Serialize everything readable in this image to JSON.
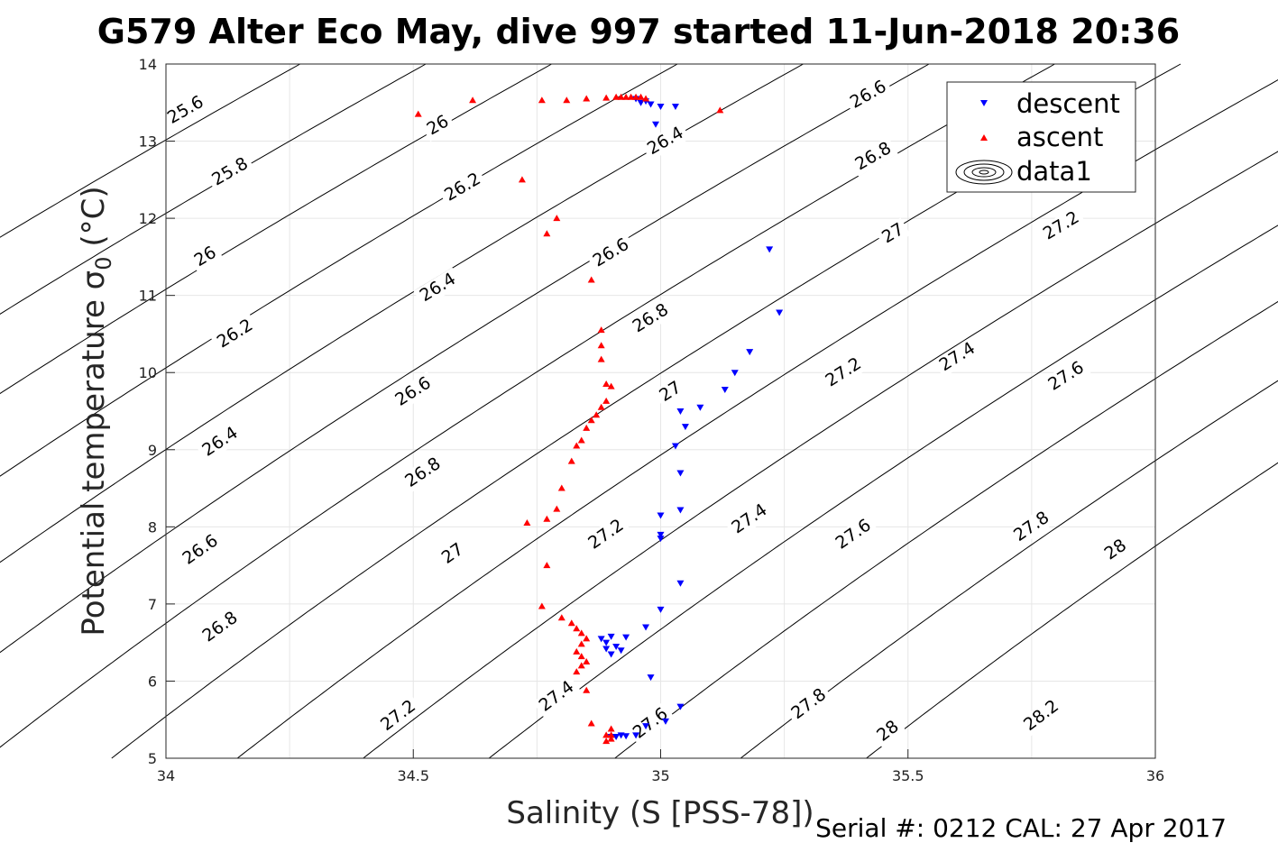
{
  "title": "G579 Alter Eco May, dive 997 started 11-Jun-2018 20:36",
  "footer": "Serial #: 0212  CAL: 27 Apr 2017",
  "chart_data": {
    "type": "scatter",
    "title": "G579 Alter Eco May, dive 997 started 11-Jun-2018 20:36",
    "xlabel": "Salinity (S [PSS-78])",
    "ylabel_main": "Potential temperature ",
    "ylabel_sigma": "σ",
    "ylabel_sub": "0",
    "ylabel_unit": " (°C)",
    "xlim": [
      34,
      36
    ],
    "ylim": [
      5,
      14
    ],
    "xticks": [
      34,
      34.5,
      35,
      35.5,
      36
    ],
    "xtick_labels": [
      "34",
      "34.5",
      "35",
      "35.5",
      "36"
    ],
    "yticks": [
      5,
      6,
      7,
      8,
      9,
      10,
      11,
      12,
      13,
      14
    ],
    "ytick_labels": [
      "5",
      "6",
      "7",
      "8",
      "9",
      "10",
      "11",
      "12",
      "13",
      "14"
    ],
    "grid": true,
    "legend_position": "top-right",
    "legend": [
      "descent",
      "ascent",
      "data1"
    ],
    "contour_levels": [
      25.6,
      25.8,
      26,
      26.2,
      26.4,
      26.6,
      26.8,
      27,
      27.2,
      27.4,
      27.6,
      27.8,
      28,
      28.2
    ],
    "contour_labels": [
      {
        "text": "25.6",
        "s": 34.04,
        "t": 13.4
      },
      {
        "text": "26",
        "s": 34.55,
        "t": 13.2
      },
      {
        "text": "26.6",
        "s": 35.42,
        "t": 13.6
      },
      {
        "text": "26.4",
        "s": 35.01,
        "t": 13.0
      },
      {
        "text": "25.8",
        "s": 34.13,
        "t": 12.6
      },
      {
        "text": "26.8",
        "s": 35.43,
        "t": 12.8
      },
      {
        "text": "26.2",
        "s": 34.6,
        "t": 12.4
      },
      {
        "text": "27.2",
        "s": 35.81,
        "t": 11.9
      },
      {
        "text": "27",
        "s": 35.47,
        "t": 11.8
      },
      {
        "text": "26",
        "s": 34.08,
        "t": 11.5
      },
      {
        "text": "26.6",
        "s": 34.9,
        "t": 11.55
      },
      {
        "text": "26.4",
        "s": 34.55,
        "t": 11.1
      },
      {
        "text": "26.2",
        "s": 34.14,
        "t": 10.5
      },
      {
        "text": "26.8",
        "s": 34.98,
        "t": 10.7
      },
      {
        "text": "27.4",
        "s": 35.6,
        "t": 10.2
      },
      {
        "text": "27.2",
        "s": 35.37,
        "t": 10.0
      },
      {
        "text": "27.6",
        "s": 35.82,
        "t": 9.95
      },
      {
        "text": "26.6",
        "s": 34.5,
        "t": 9.75
      },
      {
        "text": "27",
        "s": 35.02,
        "t": 9.75
      },
      {
        "text": "26.4",
        "s": 34.11,
        "t": 9.1
      },
      {
        "text": "26.8",
        "s": 34.52,
        "t": 8.7
      },
      {
        "text": "27.4",
        "s": 35.18,
        "t": 8.1
      },
      {
        "text": "27.8",
        "s": 35.75,
        "t": 8.0
      },
      {
        "text": "27.2",
        "s": 34.89,
        "t": 7.9
      },
      {
        "text": "26.6",
        "s": 34.07,
        "t": 7.7
      },
      {
        "text": "28",
        "s": 35.92,
        "t": 7.7
      },
      {
        "text": "27.6",
        "s": 35.39,
        "t": 7.9
      },
      {
        "text": "27",
        "s": 34.58,
        "t": 7.65
      },
      {
        "text": "26.8",
        "s": 34.11,
        "t": 6.7
      },
      {
        "text": "27.4",
        "s": 34.79,
        "t": 5.8
      },
      {
        "text": "27.2",
        "s": 34.47,
        "t": 5.55
      },
      {
        "text": "27.6",
        "s": 34.98,
        "t": 5.45
      },
      {
        "text": "27.8",
        "s": 35.3,
        "t": 5.7
      },
      {
        "text": "28",
        "s": 35.46,
        "t": 5.35
      },
      {
        "text": "28.2",
        "s": 35.77,
        "t": 5.55
      }
    ],
    "series": [
      {
        "name": "descent",
        "color": "#0000ff",
        "marker": "triangle-down",
        "x": [
          34.95,
          34.96,
          34.97,
          34.98,
          35.0,
          35.03,
          34.99,
          35.22,
          35.24,
          35.18,
          35.15,
          35.13,
          35.08,
          35.04,
          35.05,
          35.03,
          35.04,
          35.04,
          35.0,
          35.0,
          35.0,
          35.04,
          35.0,
          34.97,
          34.88,
          34.89,
          34.9,
          34.91,
          34.93,
          34.92,
          34.9,
          34.89,
          34.98,
          35.04,
          35.01,
          34.97,
          34.95,
          34.93,
          34.92,
          34.91,
          34.9
        ],
        "y": [
          13.55,
          13.5,
          13.52,
          13.48,
          13.45,
          13.45,
          13.22,
          11.6,
          10.78,
          10.27,
          10.0,
          9.78,
          9.55,
          9.5,
          9.3,
          9.05,
          8.7,
          8.22,
          8.15,
          7.9,
          7.85,
          7.27,
          6.93,
          6.7,
          6.55,
          6.5,
          6.58,
          6.45,
          6.57,
          6.4,
          6.35,
          6.42,
          6.05,
          5.67,
          5.48,
          5.42,
          5.3,
          5.29,
          5.3,
          5.28,
          5.28
        ]
      },
      {
        "name": "ascent",
        "color": "#ff0000",
        "marker": "triangle-up",
        "x": [
          34.51,
          34.62,
          34.76,
          34.81,
          34.85,
          34.89,
          34.91,
          34.92,
          34.93,
          34.94,
          34.95,
          34.96,
          34.97,
          35.12,
          34.72,
          34.79,
          34.77,
          34.86,
          34.88,
          34.88,
          34.88,
          34.89,
          34.9,
          34.89,
          34.88,
          34.87,
          34.86,
          34.85,
          34.84,
          34.83,
          34.82,
          34.8,
          34.79,
          34.77,
          34.77,
          34.73,
          34.76,
          34.8,
          34.82,
          34.83,
          34.84,
          34.85,
          34.84,
          34.83,
          34.84,
          34.85,
          34.84,
          34.83,
          34.85,
          34.86,
          34.9,
          34.89,
          34.9,
          34.89,
          34.9
        ],
        "y": [
          13.35,
          13.53,
          13.53,
          13.53,
          13.55,
          13.56,
          13.57,
          13.57,
          13.57,
          13.57,
          13.57,
          13.57,
          13.55,
          13.4,
          12.5,
          12.0,
          11.8,
          11.2,
          10.55,
          10.35,
          10.17,
          9.85,
          9.82,
          9.63,
          9.55,
          9.45,
          9.38,
          9.28,
          9.12,
          9.05,
          8.85,
          8.5,
          8.23,
          8.1,
          7.5,
          8.05,
          6.97,
          6.82,
          6.75,
          6.68,
          6.62,
          6.55,
          6.48,
          6.38,
          6.32,
          6.25,
          6.2,
          6.12,
          5.88,
          5.45,
          5.38,
          5.3,
          5.25,
          5.22,
          5.3
        ]
      },
      {
        "name": "data1",
        "color": "#000000",
        "marker": "contour"
      }
    ]
  }
}
